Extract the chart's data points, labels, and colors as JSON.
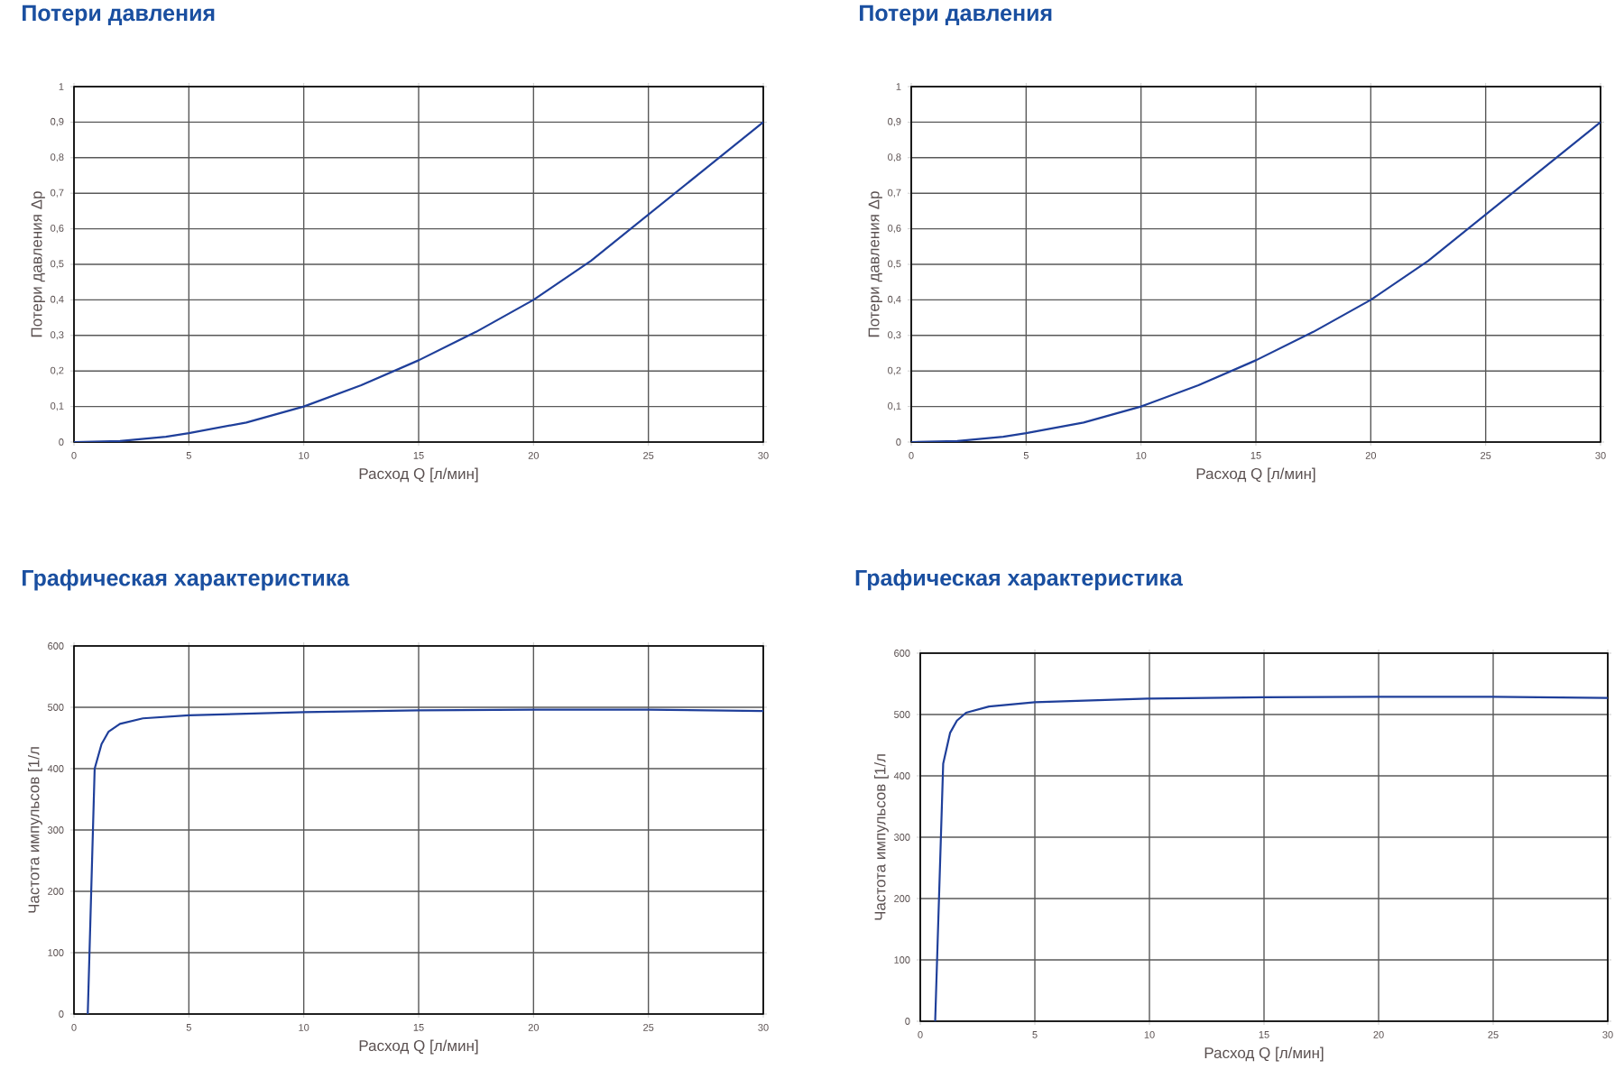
{
  "chart_data": [
    {
      "type": "line",
      "title": "Потери давления",
      "xlabel": "Расход Q [л/мин]",
      "ylabel": "Потери давления Δp",
      "grid": true,
      "xlim": [
        0,
        30
      ],
      "ylim": [
        0,
        1
      ],
      "xticks": [
        0,
        5,
        10,
        15,
        20,
        25,
        30
      ],
      "yticks": [
        0,
        {
          "value": 0.1,
          "label": "0,1"
        },
        {
          "value": 0.2,
          "label": "0,2"
        },
        {
          "value": 0.3,
          "label": "0,3"
        },
        {
          "value": 0.4,
          "label": "0,4"
        },
        {
          "value": 0.5,
          "label": "0,5"
        },
        {
          "value": 0.6,
          "label": "0,6"
        },
        {
          "value": 0.7,
          "label": "0,7"
        },
        {
          "value": 0.8,
          "label": "0,8"
        },
        {
          "value": 0.9,
          "label": "0,9"
        },
        1
      ],
      "x": [
        0,
        2,
        4,
        5,
        7.5,
        10,
        12.5,
        15,
        17.5,
        20,
        22.5,
        25,
        27.5,
        30
      ],
      "series": [
        {
          "color": "#1f3f9a",
          "values": [
            0,
            0.003,
            0.015,
            0.025,
            0.055,
            0.1,
            0.16,
            0.23,
            0.31,
            0.4,
            0.51,
            0.64,
            0.77,
            0.9
          ]
        }
      ]
    },
    {
      "type": "line",
      "title": "Потери давления",
      "xlabel": "Расход Q [л/мин]",
      "ylabel": "Потери давления Δp",
      "grid": true,
      "xlim": [
        0,
        30
      ],
      "ylim": [
        0,
        1
      ],
      "xticks": [
        0,
        5,
        10,
        15,
        20,
        25,
        30
      ],
      "yticks": [
        0,
        {
          "value": 0.1,
          "label": "0,1"
        },
        {
          "value": 0.2,
          "label": "0,2"
        },
        {
          "value": 0.3,
          "label": "0,3"
        },
        {
          "value": 0.4,
          "label": "0,4"
        },
        {
          "value": 0.5,
          "label": "0,5"
        },
        {
          "value": 0.6,
          "label": "0,6"
        },
        {
          "value": 0.7,
          "label": "0,7"
        },
        {
          "value": 0.8,
          "label": "0,8"
        },
        {
          "value": 0.9,
          "label": "0,9"
        },
        1
      ],
      "x": [
        0,
        2,
        4,
        5,
        7.5,
        10,
        12.5,
        15,
        17.5,
        20,
        22.5,
        25,
        27.5,
        30
      ],
      "series": [
        {
          "color": "#1f3f9a",
          "values": [
            0,
            0.003,
            0.015,
            0.025,
            0.055,
            0.1,
            0.16,
            0.23,
            0.31,
            0.4,
            0.51,
            0.64,
            0.77,
            0.9
          ]
        }
      ]
    },
    {
      "type": "line",
      "title": "Графическая характеристика",
      "xlabel": "Расход Q [л/мин]",
      "ylabel": "Частота импульсов [1/л",
      "grid": true,
      "xlim": [
        0,
        30
      ],
      "ylim": [
        0,
        600
      ],
      "xticks": [
        0,
        5,
        10,
        15,
        20,
        25,
        30
      ],
      "yticks": [
        0,
        100,
        200,
        300,
        400,
        500,
        600
      ],
      "x": [
        0.6,
        0.9,
        1.2,
        1.5,
        2,
        3,
        5,
        10,
        15,
        20,
        25,
        30
      ],
      "series": [
        {
          "color": "#1f3f9a",
          "values": [
            0,
            400,
            440,
            460,
            473,
            482,
            487,
            492,
            495,
            496,
            496,
            494
          ]
        }
      ]
    },
    {
      "type": "line",
      "title": "Графическая характеристика",
      "xlabel": "Расход Q [л/мин]",
      "ylabel": "Частота импульсов [1/л",
      "grid": true,
      "xlim": [
        0,
        30
      ],
      "ylim": [
        0,
        600
      ],
      "xticks": [
        0,
        5,
        10,
        15,
        20,
        25,
        30
      ],
      "yticks": [
        0,
        100,
        200,
        300,
        400,
        500,
        600
      ],
      "x": [
        0.65,
        1.0,
        1.3,
        1.6,
        2,
        3,
        5,
        10,
        15,
        20,
        25,
        30
      ],
      "series": [
        {
          "color": "#1f3f9a",
          "values": [
            0,
            420,
            470,
            490,
            503,
            513,
            520,
            526,
            528,
            529,
            529,
            527
          ]
        }
      ]
    }
  ]
}
